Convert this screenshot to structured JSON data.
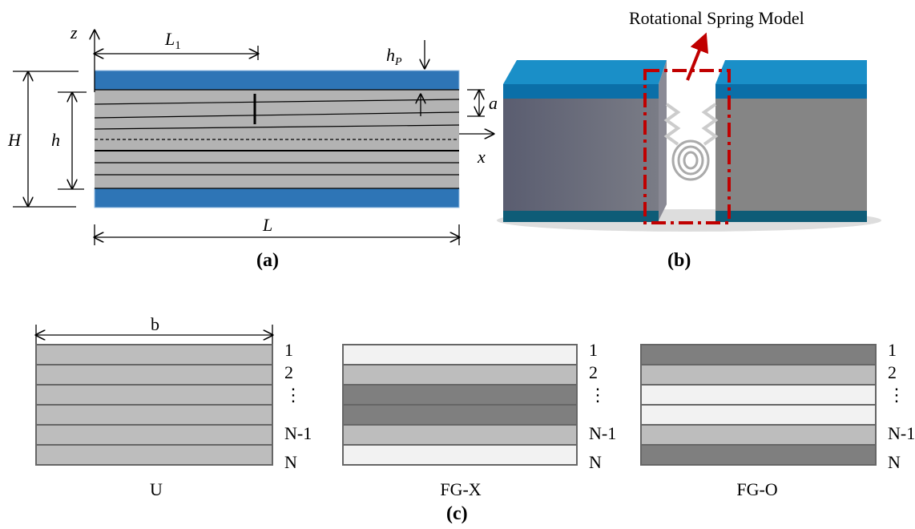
{
  "panel_a": {
    "z_axis": "z",
    "x_axis": "x",
    "length_segment": {
      "symbol": "L",
      "subscript": "1"
    },
    "patch_thickness": {
      "symbol": "h",
      "subscript": "P"
    },
    "crack_depth": "a",
    "total_height": "H",
    "core_height": "h",
    "length": "L",
    "caption": "(a)"
  },
  "panel_b": {
    "label": "Rotational Spring Model",
    "caption": "(b)"
  },
  "panel_c": {
    "width_label": "b",
    "caption": "(c)",
    "stacks": [
      {
        "name": "U",
        "layer_labels": [
          "1",
          "2",
          "⋮",
          "N-1",
          "N"
        ]
      },
      {
        "name": "FG-X",
        "layer_labels": [
          "1",
          "2",
          "⋮",
          "N-1",
          "N"
        ]
      },
      {
        "name": "FG-O",
        "layer_labels": [
          "1",
          "2",
          "⋮",
          "N-1",
          "N"
        ]
      }
    ]
  }
}
